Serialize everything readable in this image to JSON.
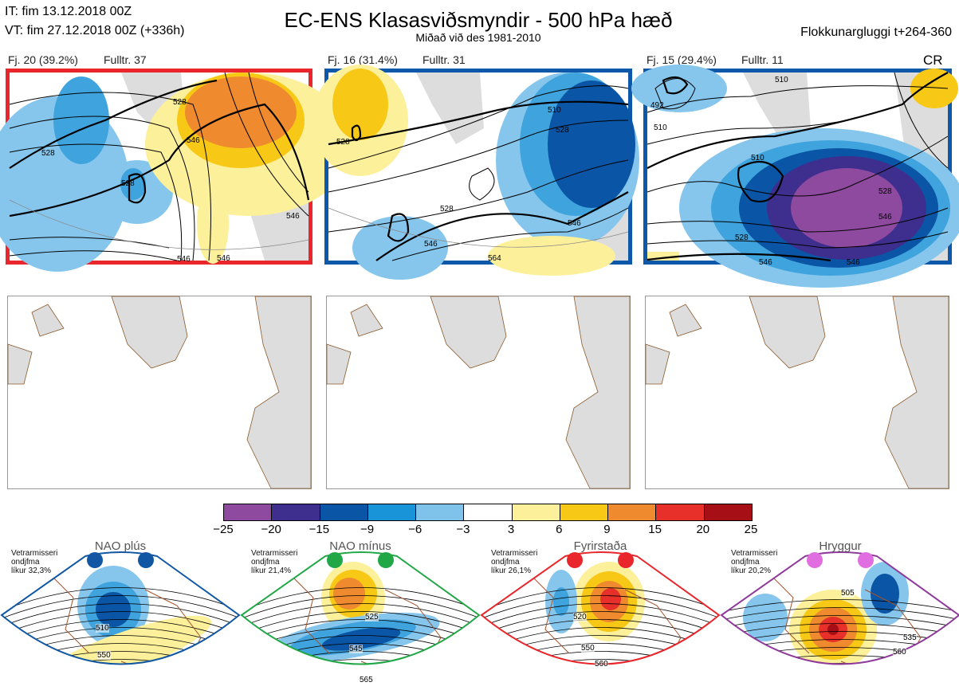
{
  "header": {
    "it": "IT: fim 13.12.2018 00Z",
    "vt": "VT: fim 27.12.2018 00Z  (+336h)",
    "title": "EC-ENS Klasasviðsmyndir - 500 hPa hæð",
    "subtitle": "Miðað við des 1981-2010",
    "window": "Flokkunargluggi t+264-360"
  },
  "clusters": [
    {
      "label_count": "Fj. 20 (39.2%)",
      "label_rep": "Fulltr. 37",
      "border_color": "#e8262b",
      "contours": [
        "528",
        "546",
        "528",
        "528",
        "546",
        "546",
        "546"
      ]
    },
    {
      "label_count": "Fj. 16 (31.4%)",
      "label_rep": "Fulltr. 31",
      "border_color": "#0d58a8",
      "contours": [
        "528",
        "510",
        "528",
        "528",
        "546",
        "546",
        "564"
      ]
    },
    {
      "label_count": "Fj. 15 (29.4%)",
      "label_rep": "Fulltr. 11",
      "border_color": "#0d58a8",
      "badge": "CR",
      "contours": [
        "510",
        "492",
        "510",
        "510",
        "528",
        "546",
        "528",
        "546",
        "546"
      ]
    }
  ],
  "colorbar": {
    "ticks": [
      "−25",
      "−20",
      "−15",
      "−9",
      "−6",
      "−3",
      "3",
      "6",
      "9",
      "15",
      "20",
      "25"
    ],
    "colors": [
      "#8e4a9e",
      "#3e2e8e",
      "#0b55a6",
      "#1a94d8",
      "#7fc3ea",
      "#ffffff",
      "#fdf09a",
      "#f7c815",
      "#ef8a2e",
      "#e8302a",
      "#a50f15"
    ]
  },
  "regimes": [
    {
      "name": "NAO plús",
      "season": "Vetrarmisseri",
      "period": "ondjfma",
      "prob": "líkur 32,3%",
      "color": "#1157a4",
      "border": "#1157a4",
      "contours": [
        "510",
        "550"
      ]
    },
    {
      "name": "NAO mínus",
      "season": "Vetrarmisseri",
      "period": "ondjfma",
      "prob": "líkur 21,4%",
      "color": "#22a747",
      "border": "#22a747",
      "contours": [
        "525",
        "545",
        "565"
      ]
    },
    {
      "name": "Fyrirstaða",
      "season": "Vetrarmisseri",
      "period": "ondjfma",
      "prob": "líkur 26,1%",
      "color": "#e8262b",
      "border": "#e8262b",
      "contours": [
        "520",
        "550",
        "560"
      ]
    },
    {
      "name": "Hryggur",
      "season": "Vetrarmisseri",
      "period": "ondjfma",
      "prob": "líkur 20,2%",
      "color": "#e06ee0",
      "border": "#8e3a9a",
      "contours": [
        "505",
        "535",
        "560"
      ]
    }
  ]
}
